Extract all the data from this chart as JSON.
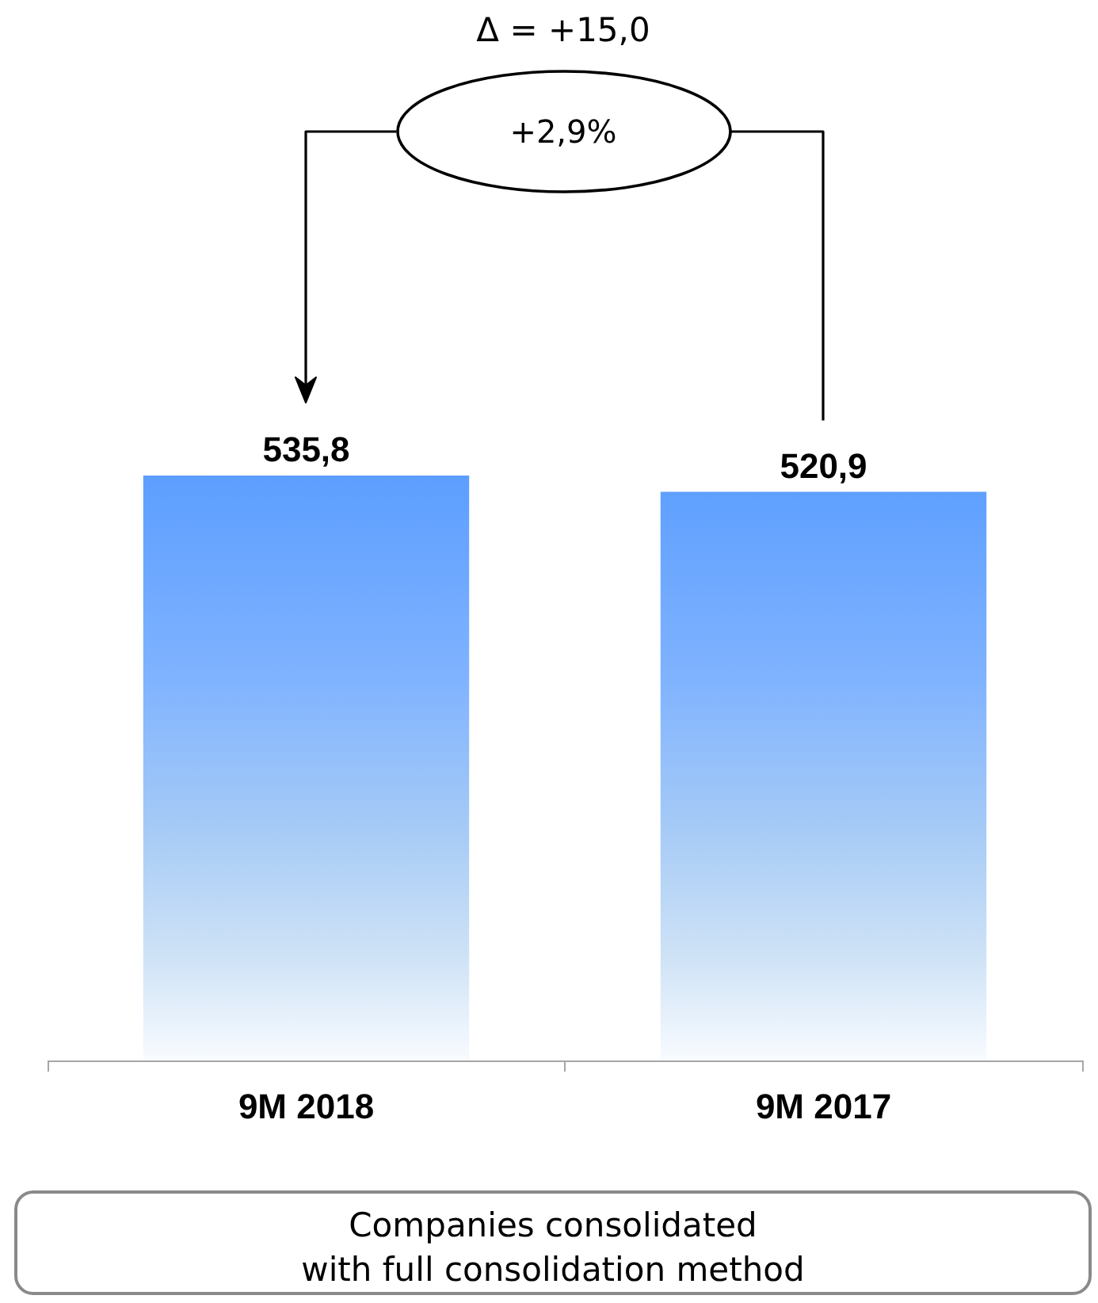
{
  "chart_data": {
    "type": "bar",
    "categories": [
      "9M 2018",
      "9M 2017"
    ],
    "values": [
      535.8,
      520.9
    ],
    "color": "#5c9eff",
    "value_labels": [
      "535,8",
      "520,9"
    ],
    "annotations": [
      "Δ = +15,0",
      "+2,9%",
      "Companies consolidated\nwith full consolidation method"
    ]
  }
}
